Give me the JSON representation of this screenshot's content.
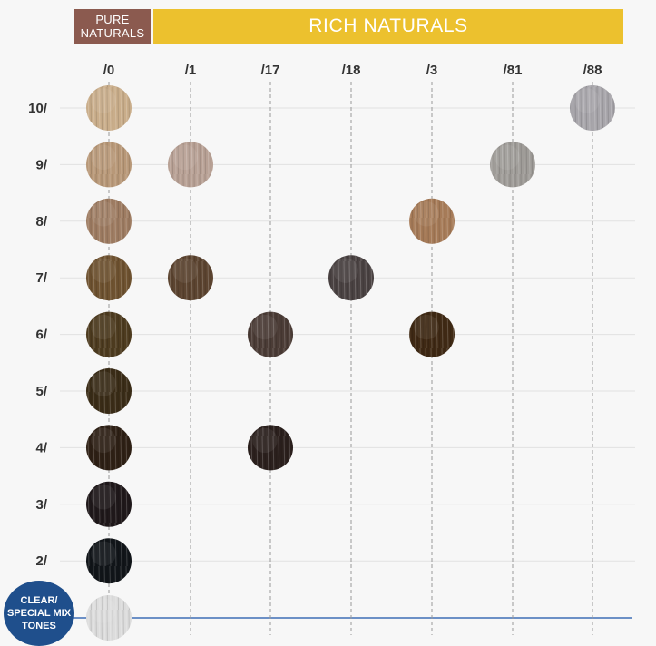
{
  "headers": {
    "pure": "PURE\nNATURALS",
    "rich": "RICH NATURALS"
  },
  "clear_label": "CLEAR/\nSPECIAL MIX\nTONES",
  "colors": {
    "pure_header": "#8b5a4f",
    "rich_header": "#ecc12e",
    "clear_badge": "#1f4f8c",
    "baseline": "#3f6fb5"
  },
  "chart_data": {
    "type": "table",
    "columns": [
      "/0",
      "/1",
      "/17",
      "/18",
      "/3",
      "/81",
      "/88"
    ],
    "rows": [
      "10/",
      "9/",
      "8/",
      "7/",
      "6/",
      "5/",
      "4/",
      "3/",
      "2/"
    ],
    "swatches": [
      {
        "row": "10/",
        "col": "/0",
        "color": "#c9ad8a"
      },
      {
        "row": "10/",
        "col": "/88",
        "color": "#a7a5aa"
      },
      {
        "row": "9/",
        "col": "/0",
        "color": "#b89878"
      },
      {
        "row": "9/",
        "col": "/1",
        "color": "#b8a195"
      },
      {
        "row": "9/",
        "col": "/81",
        "color": "#9f9c98"
      },
      {
        "row": "8/",
        "col": "/0",
        "color": "#9e7c62"
      },
      {
        "row": "8/",
        "col": "/3",
        "color": "#a67b58"
      },
      {
        "row": "7/",
        "col": "/0",
        "color": "#6e5230"
      },
      {
        "row": "7/",
        "col": "/1",
        "color": "#5c4430"
      },
      {
        "row": "7/",
        "col": "/18",
        "color": "#4a4242"
      },
      {
        "row": "6/",
        "col": "/0",
        "color": "#4d3b1f"
      },
      {
        "row": "6/",
        "col": "/17",
        "color": "#4b3c36"
      },
      {
        "row": "6/",
        "col": "/3",
        "color": "#3f2914"
      },
      {
        "row": "5/",
        "col": "/0",
        "color": "#3a2c17"
      },
      {
        "row": "4/",
        "col": "/0",
        "color": "#2e2015"
      },
      {
        "row": "4/",
        "col": "/17",
        "color": "#2b201d"
      },
      {
        "row": "3/",
        "col": "/0",
        "color": "#1f181a"
      },
      {
        "row": "2/",
        "col": "/0",
        "color": "#111519"
      }
    ],
    "clear_swatch": {
      "col": "/0",
      "color": "#dcdcdc"
    }
  }
}
